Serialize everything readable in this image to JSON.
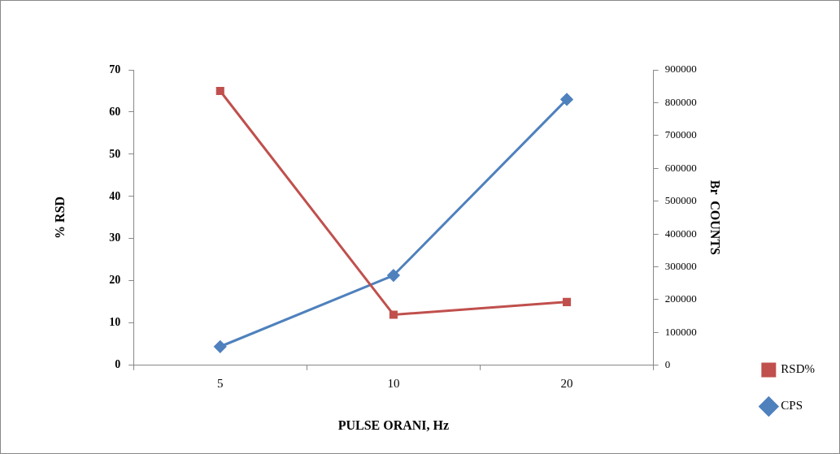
{
  "chart_data": {
    "type": "line",
    "xlabel": "PULSE ORANI, Hz",
    "ylabel": "% RSD",
    "y2label": "Br  COUNTS",
    "categories": [
      "5",
      "10",
      "20"
    ],
    "series": [
      {
        "name": "RSD%",
        "color": "#c0504d",
        "marker": "square",
        "values": [
          65,
          12,
          15
        ]
      },
      {
        "name": "CPS",
        "color": "#4f81bd",
        "marker": "diamond",
        "axis": "y2",
        "values": [
          57000,
          274000,
          810000
        ]
      }
    ],
    "ylim": [
      0,
      70
    ],
    "yticks": [
      0,
      10,
      20,
      30,
      40,
      50,
      60,
      70
    ],
    "y2lim": [
      0,
      900000
    ],
    "y2ticks": [
      0,
      100000,
      200000,
      300000,
      400000,
      500000,
      600000,
      700000,
      800000,
      900000
    ],
    "grid": false,
    "legend": "bottom right",
    "line_style": "solid"
  }
}
